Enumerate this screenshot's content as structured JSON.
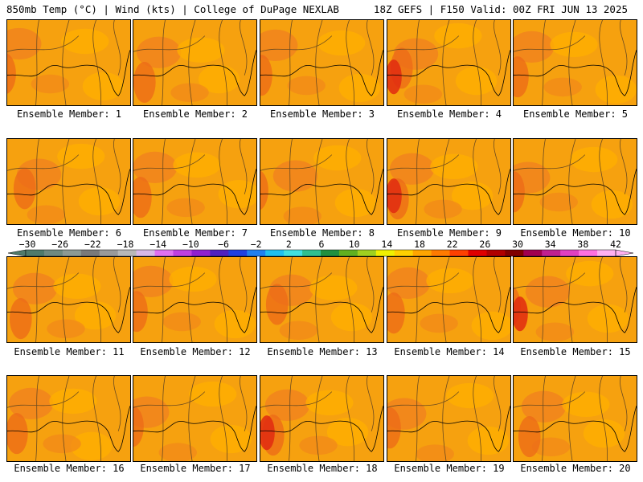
{
  "header": {
    "left": "850mb Temp (°C) | Wind (kts) | College of DuPage NEXLAB",
    "right": "18Z GEFS | F150 Valid: 00Z FRI JUN 13 2025"
  },
  "panels": [
    {
      "label": "Ensemble Member: 1"
    },
    {
      "label": "Ensemble Member: 2"
    },
    {
      "label": "Ensemble Member: 3"
    },
    {
      "label": "Ensemble Member: 4"
    },
    {
      "label": "Ensemble Member: 5"
    },
    {
      "label": "Ensemble Member: 6"
    },
    {
      "label": "Ensemble Member: 7"
    },
    {
      "label": "Ensemble Member: 8"
    },
    {
      "label": "Ensemble Member: 9"
    },
    {
      "label": "Ensemble Member: 10"
    },
    {
      "label": "Ensemble Member: 11"
    },
    {
      "label": "Ensemble Member: 12"
    },
    {
      "label": "Ensemble Member: 13"
    },
    {
      "label": "Ensemble Member: 14"
    },
    {
      "label": "Ensemble Member: 15"
    },
    {
      "label": "Ensemble Member: 16"
    },
    {
      "label": "Ensemble Member: 17"
    },
    {
      "label": "Ensemble Member: 18"
    },
    {
      "label": "Ensemble Member: 19"
    },
    {
      "label": "Ensemble Member: 20"
    }
  ],
  "colorbar": {
    "ticks": [
      "−30",
      "−26",
      "−22",
      "−18",
      "−14",
      "−10",
      "−6",
      "−2",
      "2",
      "6",
      "10",
      "14",
      "18",
      "22",
      "26",
      "30",
      "34",
      "38",
      "42"
    ],
    "colors": [
      "#4f7a6a",
      "#6f8a80",
      "#8c9a94",
      "#7a7a7a",
      "#9a9a9a",
      "#b8b8b8",
      "#d8b8e8",
      "#e070f0",
      "#c040e0",
      "#9020d0",
      "#5020c0",
      "#2040e0",
      "#2080f0",
      "#20c0f0",
      "#40e0e0",
      "#30c090",
      "#209040",
      "#60b020",
      "#a0d020",
      "#f0f000",
      "#ffd000",
      "#ffa500",
      "#ff7a00",
      "#ff4000",
      "#e00000",
      "#b00000",
      "#800000",
      "#a00050",
      "#c02090",
      "#e040c0",
      "#ff70e0",
      "#ffb0f0"
    ]
  }
}
